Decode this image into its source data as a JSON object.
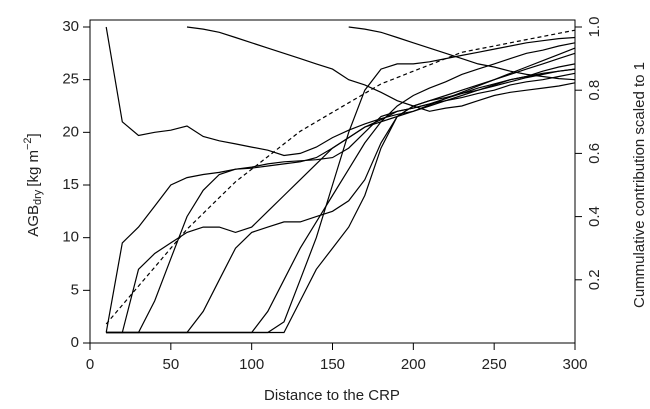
{
  "chart_data": {
    "type": "line",
    "xlabel": "Distance to the CRP",
    "ylabel": {
      "main": "AGB",
      "sub": "dry",
      "unit": "[kg m",
      "sup": "−2",
      "close": "]"
    },
    "y2label": "Cummulative contribution scaled to 1",
    "x": [
      10,
      20,
      30,
      40,
      50,
      60,
      70,
      80,
      90,
      100,
      110,
      120,
      130,
      140,
      150,
      160,
      170,
      180,
      190,
      200,
      210,
      220,
      230,
      240,
      250,
      260,
      270,
      280,
      290,
      300
    ],
    "xlim": [
      0,
      300
    ],
    "xticks": [
      0,
      50,
      100,
      150,
      200,
      250,
      300
    ],
    "ylim": [
      0,
      30
    ],
    "yticks": [
      0,
      5,
      10,
      15,
      20,
      25,
      30
    ],
    "y2lim": [
      0,
      1
    ],
    "y2ticks": [
      0.2,
      0.4,
      0.6,
      0.8,
      {
        "value": 1,
        "label": "1.0"
      }
    ],
    "series": [
      {
        "color": "#000000",
        "values": [
          30,
          21,
          19.7,
          20,
          20.2,
          20.6,
          19.6,
          19.2,
          18.9,
          18.6,
          18.3,
          17.8,
          18,
          18.6,
          19.5,
          20.2,
          20.8,
          21.3,
          21.7,
          22,
          22.5,
          23,
          23.3,
          23.7,
          24,
          24.5,
          24.8,
          25,
          25.3,
          25.6
        ]
      },
      {
        "color": "#000000",
        "values": [
          null,
          null,
          null,
          null,
          null,
          30,
          29.8,
          29.5,
          29,
          28.5,
          28,
          27.5,
          27,
          26.5,
          26,
          25,
          24.5,
          23.8,
          23,
          22.5,
          22,
          22.3,
          22.5,
          23,
          23.5,
          23.8,
          24,
          24.2,
          24.4,
          24.7
        ]
      },
      {
        "color": "#000000",
        "values": [
          null,
          null,
          null,
          null,
          null,
          null,
          null,
          null,
          null,
          null,
          null,
          null,
          null,
          null,
          null,
          30,
          29.8,
          29.5,
          29,
          28.5,
          28,
          27.5,
          27,
          26.5,
          26.2,
          25.8,
          25.5,
          25.3,
          25.1,
          25
        ]
      },
      {
        "color": "#000000",
        "values": [
          1,
          9.5,
          11,
          13,
          15,
          15.7,
          16,
          16.2,
          16.5,
          16.7,
          17,
          17.2,
          17.3,
          17.4,
          17.6,
          18.5,
          20,
          21.5,
          22,
          22.3,
          22.7,
          23,
          23.5,
          24,
          24.5,
          25,
          25.3,
          25.8,
          26.2,
          26.5
        ]
      },
      {
        "color": "#000000",
        "values": [
          1,
          1,
          1,
          4,
          8,
          12,
          14.5,
          16,
          16.5,
          16.6,
          16.8,
          17,
          17.2,
          17.6,
          18.5,
          19.5,
          20.5,
          21.2,
          22,
          22.3,
          22.7,
          23.2,
          23.7,
          24.2,
          24.6,
          25,
          25.3,
          25.6,
          25.8,
          26
        ]
      },
      {
        "color": "#000000",
        "values": [
          1,
          1,
          7,
          8.5,
          9.5,
          10.5,
          11,
          11,
          10.5,
          11,
          12.5,
          14,
          15.5,
          17,
          18.5,
          19.5,
          20.5,
          21,
          21.5,
          22,
          22.6,
          23.2,
          23.8,
          24.4,
          25,
          25.6,
          26.2,
          26.8,
          27.4,
          28
        ]
      },
      {
        "color": "#000000",
        "values": [
          1,
          1,
          1,
          1,
          1,
          1,
          3,
          6,
          9,
          10.5,
          11,
          11.5,
          11.5,
          12,
          12.5,
          13.5,
          15.5,
          19,
          21.5,
          22.5,
          23,
          23.3,
          23.7,
          24,
          24.4,
          24.8,
          25.2,
          25.5,
          25.8,
          26
        ]
      },
      {
        "color": "#000000",
        "values": [
          1,
          1,
          1,
          1,
          1,
          1,
          1,
          1,
          1,
          1,
          3,
          6,
          9,
          11.5,
          14,
          16.5,
          19,
          21,
          22.5,
          23.5,
          24.2,
          24.8,
          25.5,
          26,
          26.5,
          27,
          27.5,
          27.8,
          28.2,
          28.5
        ]
      },
      {
        "color": "#000000",
        "values": [
          1,
          1,
          1,
          1,
          1,
          1,
          1,
          1,
          1,
          1,
          1,
          2,
          6,
          10,
          15,
          20,
          24,
          26,
          26.5,
          26.5,
          26.7,
          27,
          27.3,
          27.6,
          27.9,
          28.2,
          28.5,
          28.7,
          28.9,
          29
        ]
      },
      {
        "color": "#000000",
        "values": [
          1,
          1,
          1,
          1,
          1,
          1,
          1,
          1,
          1,
          1,
          1,
          1,
          4,
          7,
          9,
          11,
          14,
          18.5,
          21.5,
          22.5,
          23,
          23.5,
          24,
          24.5,
          25,
          25.5,
          26,
          26.5,
          27,
          27.5
        ]
      },
      {
        "color": "#000000",
        "axis": "y2",
        "linestyle": "dashed",
        "values": [
          0.06,
          0.12,
          0.18,
          0.24,
          0.3,
          0.36,
          0.41,
          0.46,
          0.51,
          0.55,
          0.59,
          0.63,
          0.67,
          0.7,
          0.73,
          0.76,
          0.79,
          0.82,
          0.84,
          0.86,
          0.88,
          0.9,
          0.92,
          0.93,
          0.94,
          0.95,
          0.96,
          0.97,
          0.98,
          0.99
        ]
      }
    ]
  }
}
